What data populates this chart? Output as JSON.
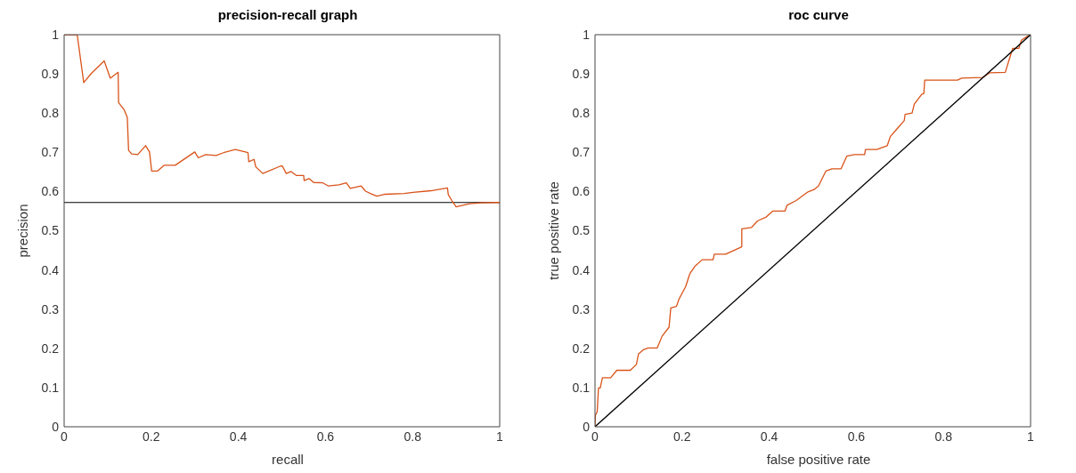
{
  "chart_data": [
    {
      "type": "line",
      "title": "precision-recall graph",
      "xlabel": "recall",
      "ylabel": "precision",
      "xlim": [
        0,
        1
      ],
      "ylim": [
        0,
        1
      ],
      "xticks": [
        0,
        0.2,
        0.4,
        0.6,
        0.8,
        1
      ],
      "yticks": [
        0,
        0.1,
        0.2,
        0.3,
        0.4,
        0.5,
        0.6,
        0.7,
        0.8,
        0.9,
        1
      ],
      "marker": "none",
      "line_style": "solid",
      "ref_lines": [
        {
          "axis": "y",
          "value": 0.572,
          "color": "#000000"
        }
      ],
      "series": [
        {
          "color": "#d95319",
          "x": [
            0,
            0.03,
            0.045,
            0.063,
            0.092,
            0.106,
            0.124,
            0.125,
            0.138,
            0.145,
            0.148,
            0.155,
            0.169,
            0.187,
            0.196,
            0.201,
            0.214,
            0.23,
            0.255,
            0.3,
            0.308,
            0.325,
            0.349,
            0.366,
            0.393,
            0.422,
            0.424,
            0.436,
            0.44,
            0.456,
            0.497,
            0.501,
            0.51,
            0.521,
            0.533,
            0.55,
            0.551,
            0.562,
            0.573,
            0.594,
            0.607,
            0.631,
            0.648,
            0.657,
            0.682,
            0.692,
            0.703,
            0.718,
            0.737,
            0.781,
            0.801,
            0.842,
            0.88,
            0.882,
            0.89,
            0.9,
            0.931,
            0.958,
            0.992,
            1
          ],
          "values": [
            1,
            1,
            0.878,
            0.902,
            0.933,
            0.889,
            0.904,
            0.827,
            0.808,
            0.789,
            0.705,
            0.696,
            0.694,
            0.717,
            0.701,
            0.652,
            0.652,
            0.667,
            0.667,
            0.701,
            0.686,
            0.694,
            0.692,
            0.699,
            0.707,
            0.699,
            0.676,
            0.682,
            0.663,
            0.646,
            0.665,
            0.665,
            0.646,
            0.651,
            0.641,
            0.641,
            0.628,
            0.633,
            0.623,
            0.622,
            0.614,
            0.617,
            0.622,
            0.608,
            0.614,
            0.601,
            0.595,
            0.588,
            0.593,
            0.595,
            0.598,
            0.602,
            0.609,
            0.592,
            0.577,
            0.561,
            0.569,
            0.571,
            0.572,
            0.572
          ]
        }
      ]
    },
    {
      "type": "line",
      "title": "roc curve",
      "xlabel": "false positive rate",
      "ylabel": "true positive rate",
      "xlim": [
        0,
        1
      ],
      "ylim": [
        0,
        1
      ],
      "xticks": [
        0,
        0.2,
        0.4,
        0.6,
        0.8,
        1
      ],
      "yticks": [
        0,
        0.1,
        0.2,
        0.3,
        0.4,
        0.5,
        0.6,
        0.7,
        0.8,
        0.9,
        1
      ],
      "marker": "none",
      "line_style": "solid",
      "series": [
        {
          "color": "#d95319",
          "x": [
            0,
            0.001,
            0.005,
            0.008,
            0.012,
            0.017,
            0.036,
            0.05,
            0.081,
            0.095,
            0.1,
            0.112,
            0.122,
            0.143,
            0.154,
            0.17,
            0.174,
            0.187,
            0.193,
            0.208,
            0.218,
            0.23,
            0.246,
            0.271,
            0.274,
            0.3,
            0.337,
            0.337,
            0.359,
            0.373,
            0.393,
            0.408,
            0.436,
            0.441,
            0.462,
            0.489,
            0.503,
            0.513,
            0.53,
            0.544,
            0.565,
            0.578,
            0.595,
            0.619,
            0.621,
            0.647,
            0.671,
            0.678,
            0.695,
            0.71,
            0.712,
            0.728,
            0.733,
            0.75,
            0.755,
            0.757,
            0.832,
            0.842,
            0.89,
            0.907,
            0.942,
            0.95,
            0.959,
            0.973,
            0.979,
            0.99,
            1
          ],
          "values": [
            0,
            0.03,
            0.038,
            0.099,
            0.099,
            0.125,
            0.125,
            0.144,
            0.144,
            0.159,
            0.186,
            0.197,
            0.201,
            0.201,
            0.231,
            0.254,
            0.303,
            0.307,
            0.326,
            0.357,
            0.391,
            0.41,
            0.426,
            0.426,
            0.44,
            0.44,
            0.459,
            0.505,
            0.508,
            0.525,
            0.535,
            0.55,
            0.55,
            0.565,
            0.577,
            0.599,
            0.605,
            0.614,
            0.652,
            0.658,
            0.658,
            0.69,
            0.694,
            0.694,
            0.707,
            0.707,
            0.717,
            0.74,
            0.762,
            0.781,
            0.797,
            0.8,
            0.823,
            0.848,
            0.85,
            0.884,
            0.884,
            0.889,
            0.891,
            0.903,
            0.904,
            0.933,
            0.965,
            0.965,
            0.986,
            0.994,
            1
          ]
        },
        {
          "type": "line",
          "color": "#000000",
          "x": [
            0,
            1
          ],
          "values": [
            0,
            1
          ]
        }
      ]
    }
  ]
}
